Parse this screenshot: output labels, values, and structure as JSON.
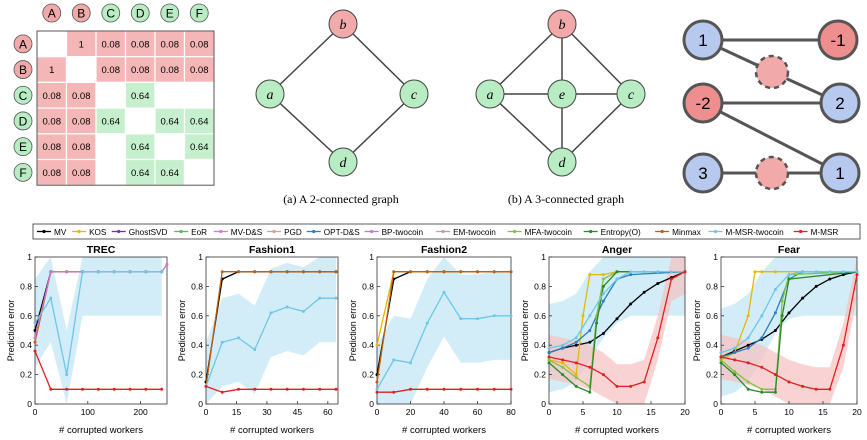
{
  "colors": {
    "pink": "#f4b6b6",
    "green": "#c6efce",
    "node_pink": "#f2a9a9",
    "node_green": "#b8ecc2",
    "node_blue": "#b7c9ef",
    "node_red": "#ef8e8e",
    "shade": "#bfe6f5",
    "shade_red": "#f6c1c1"
  },
  "matrix": {
    "labels": [
      "A",
      "B",
      "C",
      "D",
      "E",
      "F"
    ],
    "rows": [
      [
        "",
        "1",
        "0.08",
        "0.08",
        "0.08",
        "0.08"
      ],
      [
        "1",
        "",
        "0.08",
        "0.08",
        "0.08",
        "0.08"
      ],
      [
        "0.08",
        "0.08",
        "",
        "0.64",
        "",
        ""
      ],
      [
        "0.08",
        "0.08",
        "0.64",
        "",
        "0.64",
        "0.64"
      ],
      [
        "0.08",
        "0.08",
        "",
        "0.64",
        "",
        "0.64"
      ],
      [
        "0.08",
        "0.08",
        "",
        "0.64",
        "0.64",
        ""
      ]
    ]
  },
  "graph_a": {
    "caption": "(a) A 2-connected graph",
    "nodes": [
      "b",
      "a",
      "c",
      "d"
    ]
  },
  "graph_b": {
    "caption": "(b) A 3-connected graph",
    "nodes": [
      "b",
      "a",
      "e",
      "c",
      "d"
    ]
  },
  "signed_graph": {
    "nodes": [
      "1",
      "-1",
      "-2",
      "2",
      "3",
      "1"
    ]
  },
  "legend": [
    {
      "name": "MV",
      "color": "#000000"
    },
    {
      "name": "KOS",
      "color": "#e6b800"
    },
    {
      "name": "GhostSVD",
      "color": "#7b2fa8"
    },
    {
      "name": "EoR",
      "color": "#5cb85c"
    },
    {
      "name": "MV-D&S",
      "color": "#e070e0"
    },
    {
      "name": "PGD",
      "color": "#d8a090"
    },
    {
      "name": "OPT-D&S",
      "color": "#2a7fc0"
    },
    {
      "name": "BP-twocoin",
      "color": "#d070d0"
    },
    {
      "name": "EM-twocoin",
      "color": "#c49aa0"
    },
    {
      "name": "MFA-twocoin",
      "color": "#88c040"
    },
    {
      "name": "Entropy(O)",
      "color": "#2a8a2a"
    },
    {
      "name": "Minmax",
      "color": "#c06010"
    },
    {
      "name": "M-MSR-twocoin",
      "color": "#6ec6e8"
    },
    {
      "name": "M-MSR",
      "color": "#e02020"
    }
  ],
  "chart_data": [
    {
      "type": "line",
      "title": "TREC",
      "xlabel": "# corrupted workers",
      "ylabel": "Prediction error",
      "xlim": [
        0,
        250
      ],
      "ylim": [
        0,
        1
      ],
      "xticks": [
        0,
        100,
        200
      ],
      "yticks": [
        0,
        0.2,
        0.4,
        0.6,
        0.8,
        1
      ],
      "series": [
        {
          "name": "MV",
          "x": [
            0,
            30,
            60,
            90,
            120,
            150,
            180,
            210,
            240
          ],
          "values": [
            0.5,
            0.9,
            0.9,
            0.9,
            0.9,
            0.9,
            0.9,
            0.9,
            0.9
          ]
        },
        {
          "name": "Minmax",
          "x": [
            0,
            30,
            60,
            90,
            120,
            150,
            180,
            210,
            240
          ],
          "values": [
            0.42,
            0.9,
            0.9,
            0.9,
            0.9,
            0.9,
            0.9,
            0.9,
            0.9
          ]
        },
        {
          "name": "BP-twocoin",
          "x": [
            0,
            30,
            60,
            90,
            120,
            150,
            180,
            210,
            240,
            250
          ],
          "values": [
            0.45,
            0.9,
            0.9,
            0.9,
            0.9,
            0.9,
            0.9,
            0.9,
            0.9,
            0.95
          ]
        },
        {
          "name": "M-MSR-twocoin",
          "x": [
            0,
            30,
            60,
            90,
            120,
            150,
            180,
            210,
            240
          ],
          "values": [
            0.55,
            0.72,
            0.2,
            0.9,
            0.9,
            0.9,
            0.9,
            0.9,
            0.9
          ]
        },
        {
          "name": "M-MSR",
          "x": [
            0,
            30,
            60,
            90,
            120,
            150,
            180,
            210,
            240
          ],
          "values": [
            0.36,
            0.1,
            0.1,
            0.1,
            0.1,
            0.1,
            0.1,
            0.1,
            0.1
          ]
        }
      ]
    },
    {
      "type": "line",
      "title": "Fashion1",
      "xlabel": "# corrupted workers",
      "ylabel": "Prediction error",
      "xlim": [
        0,
        65
      ],
      "ylim": [
        0,
        1
      ],
      "xticks": [
        0,
        15,
        30,
        45,
        60
      ],
      "yticks": [
        0,
        0.2,
        0.4,
        0.6,
        0.8,
        1
      ],
      "series": [
        {
          "name": "MV",
          "x": [
            0,
            8,
            16,
            24,
            32,
            40,
            48,
            56,
            64
          ],
          "values": [
            0.15,
            0.85,
            0.9,
            0.9,
            0.9,
            0.9,
            0.9,
            0.9,
            0.9
          ]
        },
        {
          "name": "Minmax",
          "x": [
            0,
            8,
            16,
            24,
            32,
            40,
            48,
            56,
            64
          ],
          "values": [
            0.12,
            0.9,
            0.9,
            0.9,
            0.9,
            0.9,
            0.9,
            0.9,
            0.9
          ]
        },
        {
          "name": "M-MSR-twocoin",
          "x": [
            0,
            8,
            16,
            24,
            32,
            40,
            48,
            56,
            64
          ],
          "values": [
            0.12,
            0.42,
            0.45,
            0.37,
            0.62,
            0.66,
            0.63,
            0.72,
            0.72
          ]
        },
        {
          "name": "M-MSR",
          "x": [
            0,
            8,
            16,
            24,
            32,
            40,
            48,
            56,
            64
          ],
          "values": [
            0.12,
            0.08,
            0.1,
            0.1,
            0.1,
            0.1,
            0.1,
            0.1,
            0.1
          ]
        }
      ]
    },
    {
      "type": "line",
      "title": "Fashion2",
      "xlabel": "# corrupted workers",
      "ylabel": "Prediction error",
      "xlim": [
        0,
        80
      ],
      "ylim": [
        0,
        1
      ],
      "xticks": [
        0,
        20,
        40,
        60,
        80
      ],
      "yticks": [
        0,
        0.2,
        0.4,
        0.6,
        0.8,
        1
      ],
      "series": [
        {
          "name": "MV",
          "x": [
            0,
            10,
            20,
            30,
            40,
            50,
            60,
            70,
            80
          ],
          "values": [
            0.2,
            0.85,
            0.9,
            0.9,
            0.9,
            0.9,
            0.9,
            0.9,
            0.9
          ]
        },
        {
          "name": "KOS",
          "x": [
            0,
            10,
            20,
            30,
            40,
            50,
            60,
            70,
            80
          ],
          "values": [
            0.4,
            0.9,
            0.9,
            0.9,
            0.9,
            0.9,
            0.9,
            0.9,
            0.9
          ]
        },
        {
          "name": "Minmax",
          "x": [
            0,
            10,
            20,
            30,
            40,
            50,
            60,
            70,
            80
          ],
          "values": [
            0.15,
            0.9,
            0.9,
            0.9,
            0.9,
            0.9,
            0.9,
            0.9,
            0.9
          ]
        },
        {
          "name": "M-MSR-twocoin",
          "x": [
            0,
            10,
            20,
            30,
            40,
            50,
            60,
            70,
            80
          ],
          "values": [
            0.1,
            0.3,
            0.28,
            0.55,
            0.76,
            0.58,
            0.58,
            0.6,
            0.6
          ]
        },
        {
          "name": "M-MSR",
          "x": [
            0,
            10,
            20,
            30,
            40,
            50,
            60,
            70,
            80
          ],
          "values": [
            0.08,
            0.08,
            0.1,
            0.1,
            0.1,
            0.1,
            0.1,
            0.1,
            0.1
          ]
        }
      ]
    },
    {
      "type": "line",
      "title": "Anger",
      "xlabel": "# corrupted workers",
      "ylabel": "Prediction error",
      "xlim": [
        0,
        20
      ],
      "ylim": [
        0,
        1
      ],
      "xticks": [
        0,
        5,
        10,
        15,
        20
      ],
      "yticks": [
        0,
        0.2,
        0.4,
        0.6,
        0.8,
        1
      ],
      "series": [
        {
          "name": "MV",
          "x": [
            0,
            2,
            4,
            6,
            8,
            10,
            12,
            14,
            16,
            18,
            20
          ],
          "values": [
            0.35,
            0.38,
            0.4,
            0.42,
            0.48,
            0.58,
            0.68,
            0.76,
            0.82,
            0.86,
            0.9
          ]
        },
        {
          "name": "KOS",
          "x": [
            0,
            2,
            4,
            5,
            6,
            8,
            10,
            20
          ],
          "values": [
            0.3,
            0.28,
            0.2,
            0.6,
            0.88,
            0.88,
            0.9,
            0.9
          ]
        },
        {
          "name": "OPT-D&S",
          "x": [
            0,
            2,
            4,
            6,
            8,
            10,
            12,
            20
          ],
          "values": [
            0.35,
            0.38,
            0.42,
            0.5,
            0.7,
            0.85,
            0.88,
            0.9
          ]
        },
        {
          "name": "MFA-twocoin",
          "x": [
            0,
            2,
            4,
            6,
            7,
            8,
            10,
            20
          ],
          "values": [
            0.3,
            0.25,
            0.18,
            0.12,
            0.6,
            0.85,
            0.9,
            0.9
          ]
        },
        {
          "name": "Entropy(O)",
          "x": [
            0,
            2,
            4,
            6,
            7,
            8,
            10,
            20
          ],
          "values": [
            0.28,
            0.2,
            0.12,
            0.08,
            0.55,
            0.8,
            0.9,
            0.9
          ]
        },
        {
          "name": "M-MSR-twocoin",
          "x": [
            0,
            2,
            4,
            6,
            8,
            10,
            12,
            14,
            16,
            18,
            20
          ],
          "values": [
            0.38,
            0.4,
            0.45,
            0.6,
            0.75,
            0.85,
            0.9,
            0.9,
            0.9,
            0.9,
            0.9
          ]
        },
        {
          "name": "M-MSR",
          "x": [
            0,
            2,
            4,
            6,
            8,
            10,
            12,
            14,
            16,
            18,
            20
          ],
          "values": [
            0.32,
            0.3,
            0.28,
            0.25,
            0.2,
            0.12,
            0.12,
            0.15,
            0.45,
            0.85,
            0.9
          ]
        }
      ]
    },
    {
      "type": "line",
      "title": "Fear",
      "xlabel": "# corrupted workers",
      "ylabel": "Prediction error",
      "xlim": [
        0,
        20
      ],
      "ylim": [
        0,
        1
      ],
      "xticks": [
        0,
        5,
        10,
        15,
        20
      ],
      "yticks": [
        0,
        0.2,
        0.4,
        0.6,
        0.8,
        1
      ],
      "series": [
        {
          "name": "MV",
          "x": [
            0,
            2,
            4,
            6,
            8,
            10,
            12,
            14,
            16,
            18,
            20
          ],
          "values": [
            0.32,
            0.36,
            0.4,
            0.44,
            0.5,
            0.62,
            0.72,
            0.8,
            0.85,
            0.88,
            0.9
          ]
        },
        {
          "name": "KOS",
          "x": [
            0,
            2,
            4,
            5,
            6,
            8,
            20
          ],
          "values": [
            0.3,
            0.35,
            0.6,
            0.9,
            0.9,
            0.9,
            0.9
          ]
        },
        {
          "name": "OPT-D&S",
          "x": [
            0,
            2,
            4,
            6,
            8,
            10,
            12,
            20
          ],
          "values": [
            0.32,
            0.35,
            0.38,
            0.45,
            0.62,
            0.85,
            0.9,
            0.9
          ]
        },
        {
          "name": "MFA-twocoin",
          "x": [
            0,
            2,
            4,
            6,
            8,
            9,
            10,
            20
          ],
          "values": [
            0.3,
            0.22,
            0.15,
            0.1,
            0.1,
            0.7,
            0.88,
            0.9
          ]
        },
        {
          "name": "Entropy(O)",
          "x": [
            0,
            2,
            4,
            6,
            8,
            9,
            10,
            20
          ],
          "values": [
            0.28,
            0.2,
            0.1,
            0.08,
            0.08,
            0.6,
            0.85,
            0.9
          ]
        },
        {
          "name": "M-MSR-twocoin",
          "x": [
            0,
            2,
            4,
            6,
            8,
            10,
            12,
            14,
            16,
            18,
            20
          ],
          "values": [
            0.35,
            0.38,
            0.45,
            0.6,
            0.78,
            0.88,
            0.9,
            0.9,
            0.9,
            0.9,
            0.9
          ]
        },
        {
          "name": "M-MSR",
          "x": [
            0,
            2,
            4,
            6,
            8,
            10,
            12,
            14,
            16,
            18,
            20
          ],
          "values": [
            0.32,
            0.3,
            0.28,
            0.25,
            0.2,
            0.15,
            0.12,
            0.1,
            0.1,
            0.4,
            0.88
          ]
        }
      ]
    }
  ]
}
